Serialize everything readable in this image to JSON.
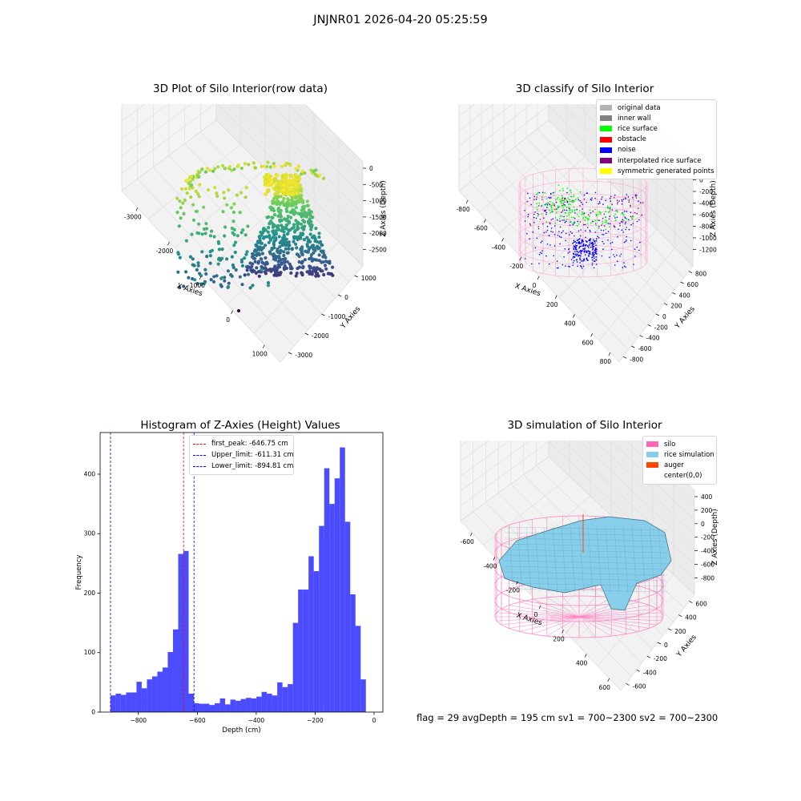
{
  "suptitle": "JNJNR01 2026-04-20 05:25:59",
  "panels": {
    "raw": {
      "title": "3D Plot of Silo Interior(row data)",
      "xlabel": "X Axies",
      "ylabel": "Y Axies",
      "zlabel": "Z Axies (Depth)",
      "xticks": [
        "-3000",
        "-2000",
        "-1000",
        "0",
        "1000"
      ],
      "yticks": [
        "1000",
        "0",
        "-1000",
        "-2000",
        "-3000"
      ],
      "zticks": [
        "0",
        "-500",
        "-1000",
        "-1500",
        "-2000",
        "-2500"
      ]
    },
    "classify": {
      "title": "3D classify of Silo Interior",
      "xlabel": "X Axies",
      "ylabel": "Y Axies",
      "zlabel": "Z Axies (Depth)",
      "xticks": [
        "-800",
        "-600",
        "-400",
        "-200",
        "0",
        "200",
        "400",
        "600",
        "800"
      ],
      "yticks": [
        "800",
        "600",
        "400",
        "200",
        "0",
        "-200",
        "-400",
        "-600",
        "-800"
      ],
      "zticks": [
        "200",
        "0",
        "-200",
        "-400",
        "-600",
        "-800",
        "-1000",
        "-1200"
      ],
      "legend": [
        {
          "label": "original data",
          "color": "#b3b3b3"
        },
        {
          "label": "inner wall",
          "color": "#808080"
        },
        {
          "label": "rice surface",
          "color": "#00ff00"
        },
        {
          "label": "obstacle",
          "color": "#ff0000"
        },
        {
          "label": "noise",
          "color": "#0000ff"
        },
        {
          "label": "interpolated rice surface",
          "color": "#800080"
        },
        {
          "label": "symmetric generated points",
          "color": "#ffff00"
        }
      ]
    },
    "simulation": {
      "title": "3D simulation of Silo Interior",
      "xlabel": "X Axies",
      "ylabel": "Y Axies",
      "zlabel": "Z Axies (Depth)",
      "xticks": [
        "-600",
        "-400",
        "-200",
        "0",
        "200",
        "400",
        "600"
      ],
      "yticks": [
        "600",
        "400",
        "200",
        "0",
        "-200",
        "-400",
        "-600"
      ],
      "zticks": [
        "400",
        "200",
        "0",
        "-200",
        "-400",
        "-600",
        "-800"
      ],
      "legend": [
        {
          "label": "silo",
          "color": "#ff69b4"
        },
        {
          "label": "rice simulation",
          "color": "#87ceeb"
        },
        {
          "label": "auger",
          "color": "#ff4500"
        },
        {
          "label": "center(0,0)",
          "color": "#ffffff"
        }
      ]
    }
  },
  "status_line": "flag = 29   avgDepth = 195 cm   sv1 = 700~2300   sv2 = 700~2300",
  "chart_data": {
    "type": "bar",
    "title": "Histogram of Z-Axies (Height) Values",
    "xlabel": "Depth (cm)",
    "ylabel": "Frequency",
    "xlim": [
      -930,
      30
    ],
    "ylim": [
      0,
      470
    ],
    "xticks": [
      -800,
      -600,
      -400,
      -200,
      0
    ],
    "yticks": [
      0,
      100,
      200,
      300,
      400
    ],
    "bar_color": "#0000ff",
    "bins": {
      "start": -895,
      "width": 17.7,
      "values": [
        28,
        31,
        29,
        33,
        33,
        51,
        40,
        55,
        60,
        68,
        75,
        101,
        139,
        266,
        271,
        31,
        15,
        14,
        14,
        12,
        15,
        23,
        13,
        21,
        19,
        22,
        24,
        23,
        26,
        34,
        31,
        28,
        50,
        42,
        47,
        150,
        206,
        206,
        262,
        237,
        313,
        410,
        350,
        393,
        445,
        320,
        198,
        145,
        55
      ]
    },
    "lines": [
      {
        "label": "first_peak: -646.75 cm",
        "x": -646.75,
        "color": "#ff0000"
      },
      {
        "label": "Upper_limit: -611.31 cm",
        "x": -611.31,
        "color": "#0000ff"
      },
      {
        "label": "Lower_limit: -894.81 cm",
        "x": -894.81,
        "color": "#0000ff"
      }
    ]
  }
}
